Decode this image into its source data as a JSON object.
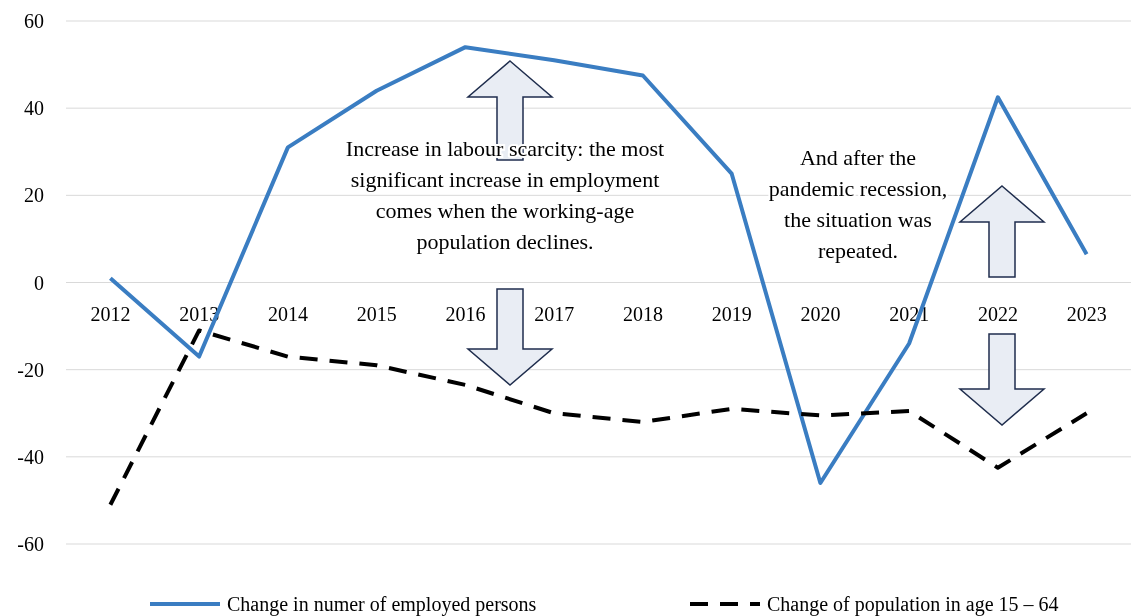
{
  "chart_data": {
    "type": "line",
    "categories": [
      "2012",
      "2013",
      "2014",
      "2015",
      "2016",
      "2017",
      "2018",
      "2019",
      "2020",
      "2021",
      "2022",
      "2023"
    ],
    "series": [
      {
        "name": "Change in numer of employed persons",
        "color": "#3a7dc2",
        "line_style": "solid",
        "values": [
          1,
          -17,
          31,
          44,
          54,
          51,
          47.5,
          25,
          -46,
          -14,
          42.5,
          6.5
        ]
      },
      {
        "name": "Change of population in age 15 – 64",
        "color": "#000000",
        "line_style": "dashed",
        "values": [
          -51,
          -11,
          -17,
          -19,
          -23.5,
          -30,
          -32,
          -29,
          -30.5,
          -29.5,
          -42.5,
          -30
        ]
      }
    ],
    "ylim": [
      -60,
      60
    ],
    "yticks": [
      -60,
      -40,
      -20,
      0,
      20,
      40,
      60
    ],
    "grid": "y",
    "legend": "bottom",
    "marker": "none",
    "annotations": [
      "Increase in labour scarcity: the most significant increase in employment comes when the working-age population declines.",
      "And after the pandemic recession, the situation was repeated."
    ]
  }
}
